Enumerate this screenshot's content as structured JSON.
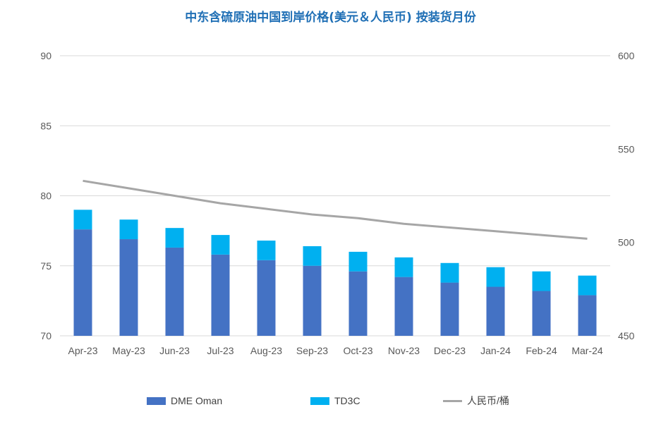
{
  "chart_data": {
    "title": "中东含硫原油中国到岸价格(美元＆人民币) 按装货月份",
    "type": "bar+line",
    "categories": [
      "Apr-23",
      "May-23",
      "Jun-23",
      "Jul-23",
      "Aug-23",
      "Sep-23",
      "Oct-23",
      "Nov-23",
      "Dec-23",
      "Jan-24",
      "Feb-24",
      "Mar-24"
    ],
    "series": [
      {
        "name": "DME Oman",
        "type": "stacked-bar",
        "axis": "left",
        "color": "#4472c4",
        "values": [
          77.6,
          76.9,
          76.3,
          75.8,
          75.4,
          75.0,
          74.6,
          74.2,
          73.8,
          73.5,
          73.2,
          72.9
        ]
      },
      {
        "name": "TD3C",
        "type": "stacked-bar",
        "axis": "left",
        "color": "#00b0f0",
        "values": [
          1.4,
          1.4,
          1.4,
          1.4,
          1.4,
          1.4,
          1.4,
          1.4,
          1.4,
          1.4,
          1.4,
          1.4
        ]
      },
      {
        "name": "人民币/桶",
        "type": "line",
        "axis": "right",
        "color": "#a6a6a6",
        "values": [
          533,
          529,
          525,
          521,
          518,
          515,
          513,
          510,
          508,
          506,
          504,
          502
        ]
      }
    ],
    "y_left": {
      "min": 70,
      "max": 90,
      "ticks": [
        70,
        75,
        80,
        85,
        90
      ]
    },
    "y_right": {
      "min": 450,
      "max": 600,
      "ticks": [
        450,
        500,
        550,
        600
      ]
    },
    "grid": true,
    "legend_position": "bottom"
  }
}
